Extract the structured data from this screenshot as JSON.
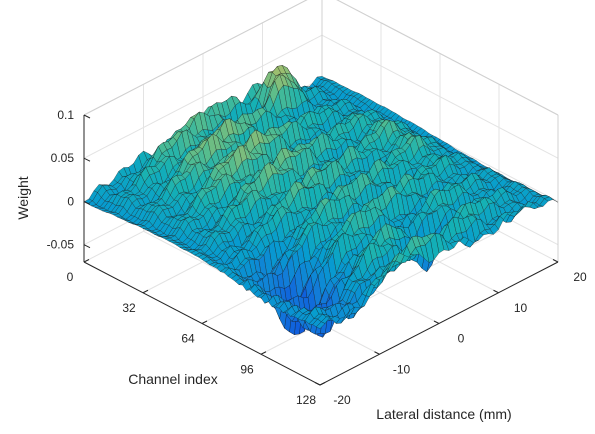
{
  "chart_data": {
    "type": "surface",
    "title": "",
    "zlabel": "Weight",
    "xlabel": "Channel index",
    "ylabel": "Lateral distance (mm)",
    "x_ticks": [
      "0",
      "32",
      "64",
      "96",
      "128"
    ],
    "y_ticks": [
      "-20",
      "-10",
      "0",
      "10",
      "20"
    ],
    "z_ticks": [
      "-0.05",
      "0",
      "0.05",
      "0.1"
    ],
    "xlim": [
      0,
      128
    ],
    "ylim": [
      -20,
      20
    ],
    "zlim": [
      -0.07,
      0.1
    ],
    "colormap": "parula",
    "grid": true,
    "note_values": "Surface of weight vs. channel index and lateral distance; values range approx -0.06 to 0.08, mostly between 0 and 0.03 with ridges."
  }
}
